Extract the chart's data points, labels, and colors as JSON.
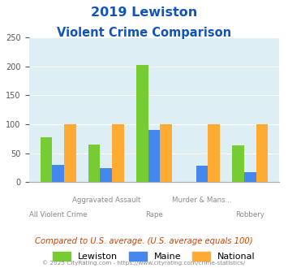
{
  "title_line1": "2019 Lewiston",
  "title_line2": "Violent Crime Comparison",
  "categories": [
    "All Violent Crime",
    "Aggravated Assault",
    "Rape",
    "Murder & Mans...",
    "Robbery"
  ],
  "line1_labels": [
    "",
    "Aggravated Assault",
    "",
    "Murder & Mans...",
    ""
  ],
  "line2_labels": [
    "All Violent Crime",
    "",
    "Rape",
    "",
    "Robbery"
  ],
  "lewiston": [
    78,
    65,
    203,
    0,
    63
  ],
  "maine": [
    30,
    25,
    91,
    29,
    17
  ],
  "national": [
    100,
    100,
    100,
    100,
    100
  ],
  "bar_colors": {
    "lewiston": "#77cc33",
    "maine": "#4488ee",
    "national": "#ffaa33"
  },
  "ylim": [
    0,
    250
  ],
  "yticks": [
    0,
    50,
    100,
    150,
    200,
    250
  ],
  "title_color": "#1155bb",
  "plot_bg": "#ddeef5",
  "footer_text": "© 2025 CityRating.com - https://www.cityrating.com/crime-statistics/",
  "compare_text": "Compared to U.S. average. (U.S. average equals 100)",
  "legend_labels": [
    "Lewiston",
    "Maine",
    "National"
  ]
}
